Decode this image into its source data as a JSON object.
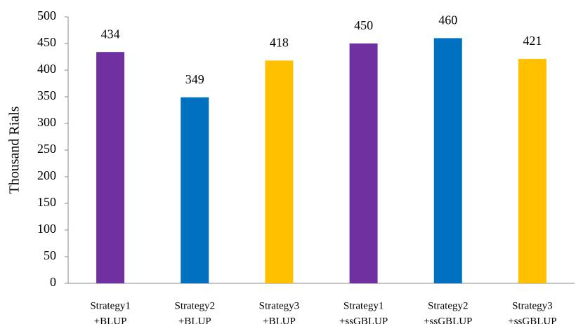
{
  "chart_data": {
    "type": "bar",
    "y_label": "Thousand Rials",
    "categories": [
      [
        "Strategy1",
        "+BLUP"
      ],
      [
        "Strategy2",
        "+BLUP"
      ],
      [
        "Strategy3",
        "+BLUP"
      ],
      [
        "Strategy1",
        "+ssGBLUP"
      ],
      [
        "Strategy2",
        "+ssGBLUP"
      ],
      [
        "Strategy3",
        "+ssGBLUP"
      ]
    ],
    "values": [
      434,
      349,
      418,
      450,
      460,
      421
    ],
    "colors": [
      "#7030a0",
      "#0070c0",
      "#ffc000",
      "#7030a0",
      "#0070c0",
      "#ffc000"
    ],
    "ylim": [
      0,
      500
    ],
    "yticks": [
      0,
      50,
      100,
      150,
      200,
      250,
      300,
      350,
      400,
      450,
      500
    ],
    "grid": false
  }
}
